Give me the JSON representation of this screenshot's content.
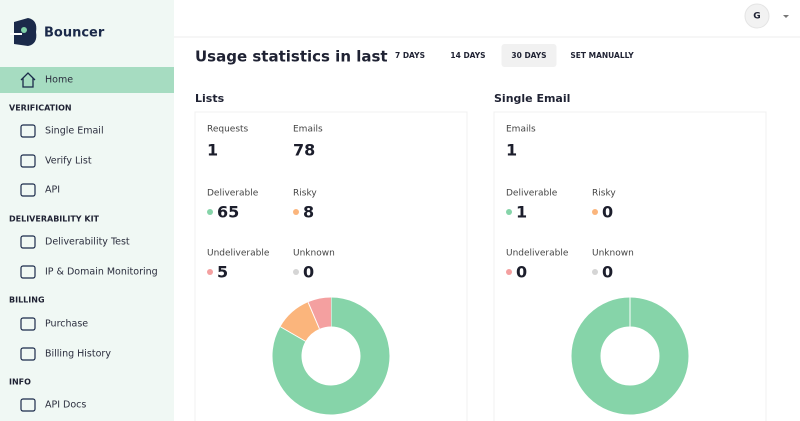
{
  "sidebar": {
    "brand": "Bouncer",
    "home": "Home",
    "sections": [
      {
        "title": "VERIFICATION",
        "items": [
          "Single Email",
          "Verify List",
          "API"
        ]
      },
      {
        "title": "DELIVERABILITY KIT",
        "items": [
          "Deliverability Test",
          "IP & Domain Monitoring"
        ]
      },
      {
        "title": "BILLING",
        "items": [
          "Purchase",
          "Billing History"
        ]
      },
      {
        "title": "INFO",
        "items": [
          "API Docs"
        ]
      }
    ]
  },
  "header": {
    "avatar": "G"
  },
  "stats": {
    "title": "Usage statistics in last",
    "ranges": [
      "7 DAYS",
      "14 DAYS",
      "30 DAYS",
      "SET MANUALLY"
    ],
    "active_range": 2
  },
  "panels": [
    {
      "title": "Lists",
      "metrics": [
        {
          "label": "Requests",
          "value": 1
        },
        {
          "label": "Emails",
          "value": 78
        },
        {
          "label": "Deliverable",
          "value": 65,
          "color": "#86d4a9"
        },
        {
          "label": "Risky",
          "value": 8,
          "color": "#fbb57c"
        },
        {
          "label": "Undeliverable",
          "value": 5,
          "color": "#f4a0a0"
        },
        {
          "label": "Unknown",
          "value": 0,
          "color": "#d5d5d5"
        }
      ]
    },
    {
      "title": "Single Email",
      "metrics": [
        {
          "label": "Emails",
          "value": 1
        },
        {
          "label": "Deliverable",
          "value": 1,
          "color": "#86d4a9"
        },
        {
          "label": "Risky",
          "value": 0,
          "color": "#fbb57c"
        },
        {
          "label": "Undeliverable",
          "value": 0,
          "color": "#f4a0a0"
        },
        {
          "label": "Unknown",
          "value": 0,
          "color": "#d5d5d5"
        }
      ]
    }
  ]
}
